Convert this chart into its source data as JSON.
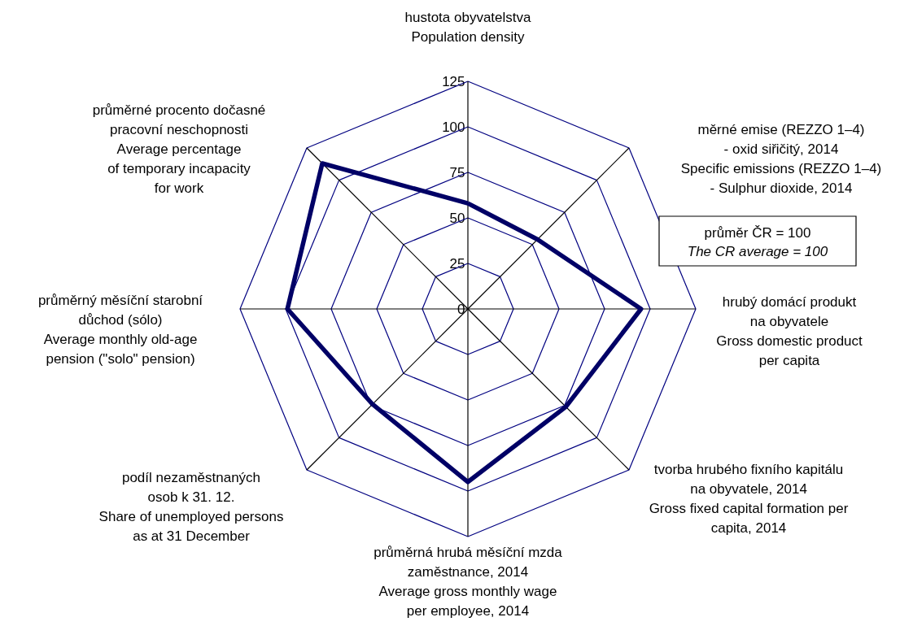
{
  "chart_data": {
    "type": "radar",
    "categories": [
      "hustota obyvatelstva\n\nPopulation density",
      "měrné emise (REZZO 1–4)\n- oxid siřičitý, 2014\n\nSpecific emissions (REZZO 1–4)\n- Sulphur dioxide, 2014",
      "hrubý domácí produkt\nna obyvatele\n\nGross domestic product\nper capita",
      "tvorba hrubého fixního kapitálu\nna obyvatele, 2014\n\nGross fixed capital formation per\ncapita, 2014",
      "průměrná hrubá měsíční mzda\nzaměstnance, 2014\n\nAverage gross monthly wage\nper employee, 2014",
      "podíl nezaměstnaných\nosob k 31. 12.\n\nShare of unemployed persons\nas at 31 December",
      "průměrný měsíční starobní\ndůchod (sólo)\n\nAverage monthly old-age\npension (\"solo\" pension)",
      "průměrné procento dočasné\npracovní neschopnosti\n\nAverage percentage\nof temporary incapacity\nfor work"
    ],
    "series": [
      {
        "color": "#000066",
        "values": [
          58,
          54,
          95,
          76,
          95,
          74,
          99,
          113
        ]
      }
    ],
    "ylim": [
      0,
      125
    ],
    "yticks": [
      0,
      25,
      50,
      75,
      100,
      125
    ],
    "grid": true,
    "annotations": [
      "průměr ČR = 100\n\nThe CR average = 100"
    ]
  }
}
